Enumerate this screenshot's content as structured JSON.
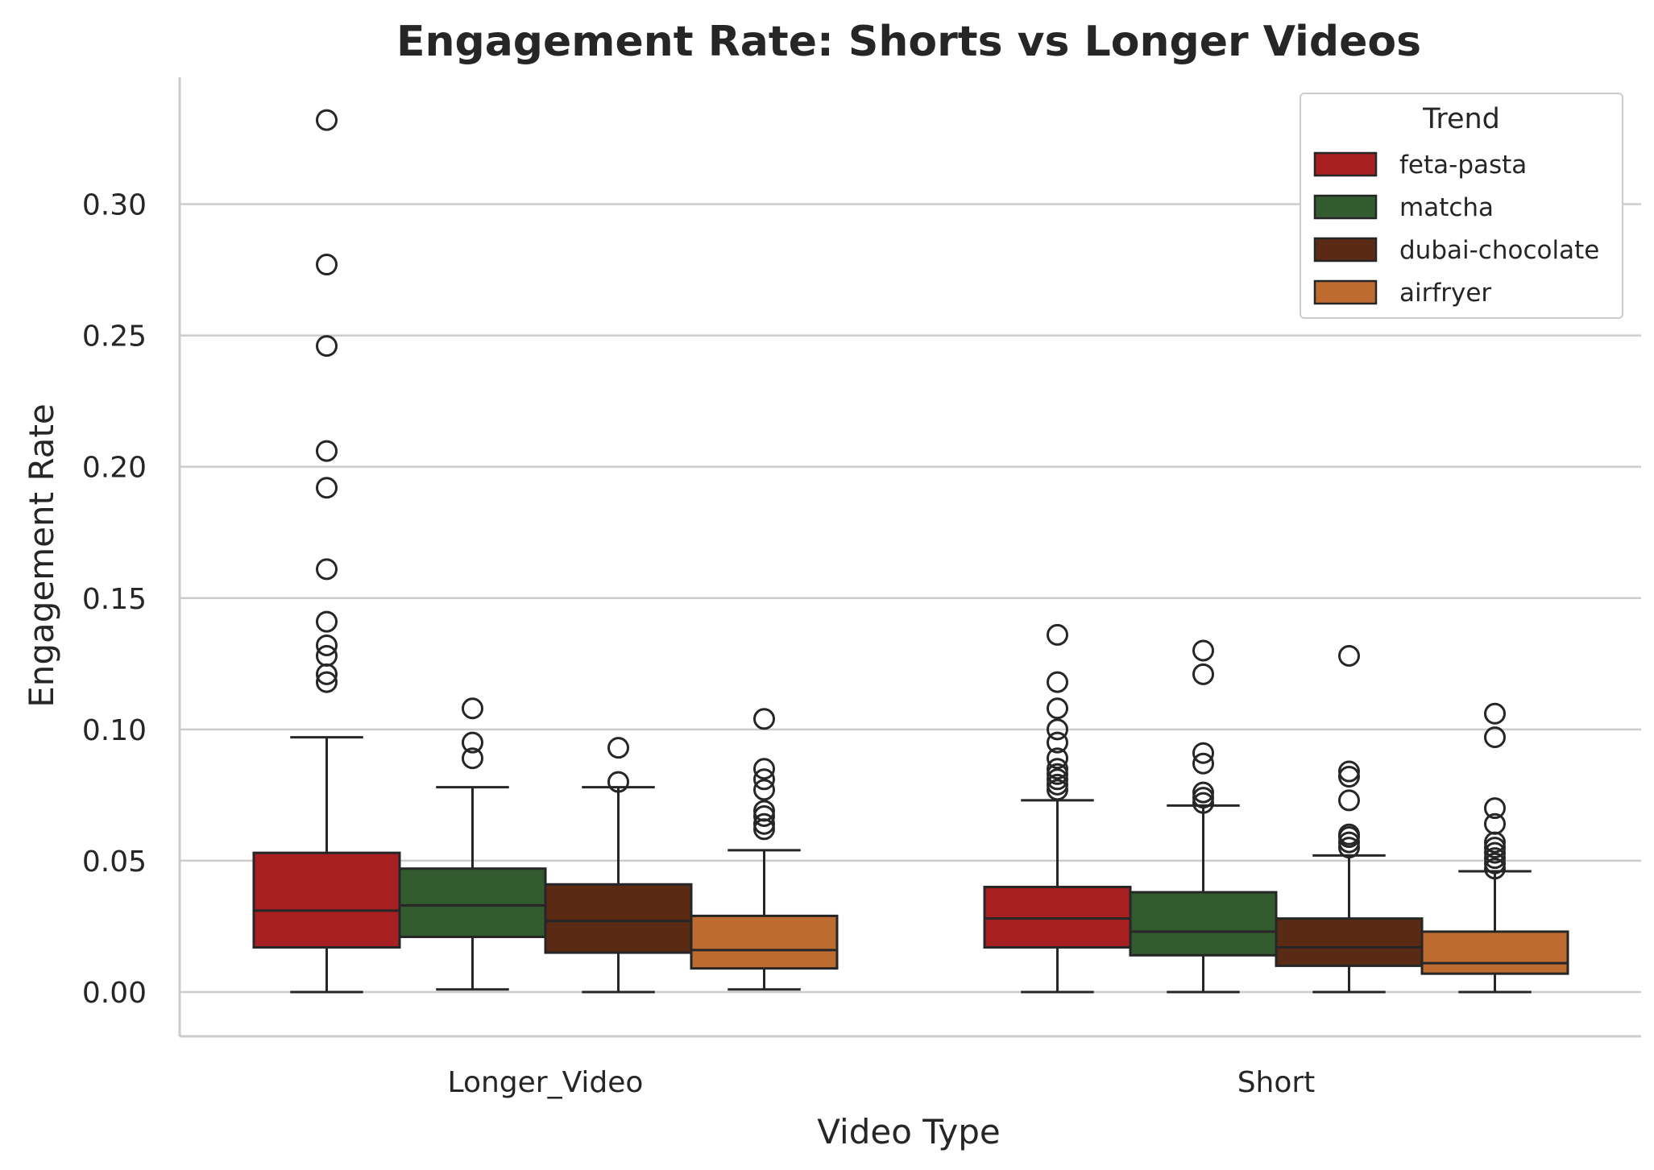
{
  "chart_data": {
    "type": "box",
    "title": "Engagement Rate: Shorts vs Longer Videos",
    "xlabel": "Video Type",
    "ylabel": "Engagement Rate",
    "ylim": [
      -0.016,
      0.348
    ],
    "yticks": [
      0.0,
      0.05,
      0.1,
      0.15,
      0.2,
      0.25,
      0.3
    ],
    "ytick_labels": [
      "0.00",
      "0.05",
      "0.10",
      "0.15",
      "0.20",
      "0.25",
      "0.30"
    ],
    "grid": "horizontal",
    "categories": [
      "Longer_Video",
      "Short"
    ],
    "legend": {
      "title": "Trend",
      "position": "top-right"
    },
    "series": [
      {
        "name": "feta-pasta",
        "color": "#a81f21",
        "boxes": [
          {
            "whisker_low": 0.0,
            "q1": 0.017,
            "median": 0.031,
            "q3": 0.053,
            "whisker_high": 0.097,
            "outliers": [
              0.118,
              0.121,
              0.128,
              0.132,
              0.141,
              0.161,
              0.192,
              0.206,
              0.246,
              0.277,
              0.332
            ]
          },
          {
            "whisker_low": 0.0,
            "q1": 0.017,
            "median": 0.028,
            "q3": 0.04,
            "whisker_high": 0.073,
            "outliers": [
              0.077,
              0.079,
              0.081,
              0.083,
              0.085,
              0.089,
              0.095,
              0.1,
              0.108,
              0.118,
              0.136
            ]
          }
        ]
      },
      {
        "name": "matcha",
        "color": "#335b30",
        "boxes": [
          {
            "whisker_low": 0.001,
            "q1": 0.021,
            "median": 0.033,
            "q3": 0.047,
            "whisker_high": 0.078,
            "outliers": [
              0.089,
              0.095,
              0.108
            ]
          },
          {
            "whisker_low": 0.0,
            "q1": 0.014,
            "median": 0.023,
            "q3": 0.038,
            "whisker_high": 0.071,
            "outliers": [
              0.072,
              0.074,
              0.076,
              0.087,
              0.091,
              0.121,
              0.13
            ]
          }
        ]
      },
      {
        "name": "dubai-chocolate",
        "color": "#5a2a15",
        "boxes": [
          {
            "whisker_low": 0.0,
            "q1": 0.015,
            "median": 0.027,
            "q3": 0.041,
            "whisker_high": 0.078,
            "outliers": [
              0.08,
              0.093
            ]
          },
          {
            "whisker_low": 0.0,
            "q1": 0.01,
            "median": 0.017,
            "q3": 0.028,
            "whisker_high": 0.052,
            "outliers": [
              0.055,
              0.057,
              0.059,
              0.06,
              0.073,
              0.082,
              0.084,
              0.128
            ]
          }
        ]
      },
      {
        "name": "airfryer",
        "color": "#bd6b30",
        "boxes": [
          {
            "whisker_low": 0.001,
            "q1": 0.009,
            "median": 0.016,
            "q3": 0.029,
            "whisker_high": 0.054,
            "outliers": [
              0.062,
              0.064,
              0.067,
              0.069,
              0.077,
              0.081,
              0.085,
              0.104
            ]
          },
          {
            "whisker_low": 0.0,
            "q1": 0.007,
            "median": 0.011,
            "q3": 0.023,
            "whisker_high": 0.046,
            "outliers": [
              0.047,
              0.049,
              0.051,
              0.053,
              0.055,
              0.057,
              0.064,
              0.07,
              0.097,
              0.106
            ]
          }
        ]
      }
    ]
  }
}
